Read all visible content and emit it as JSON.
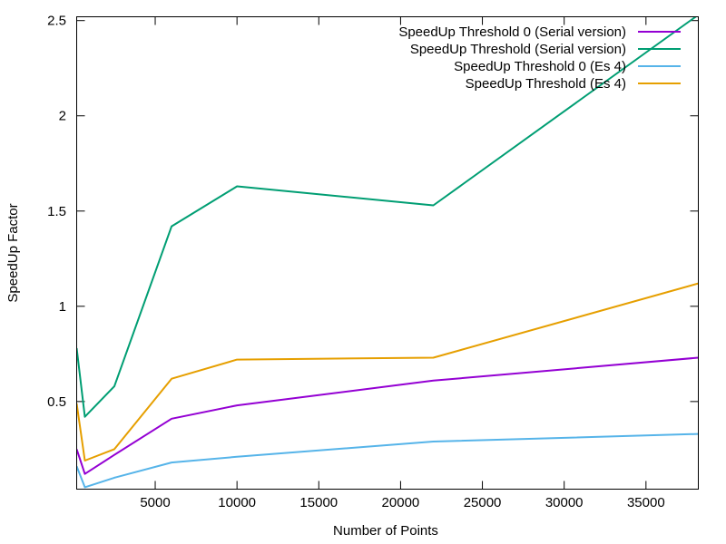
{
  "chart_data": {
    "type": "line",
    "title": "",
    "xlabel": "Number of Points",
    "ylabel": "SpeedUp Factor",
    "xlim": [
      200,
      38200
    ],
    "ylim": [
      0.04,
      2.52
    ],
    "xticks": [
      5000,
      10000,
      15000,
      20000,
      25000,
      30000,
      35000
    ],
    "yticks": [
      0.5,
      1,
      1.5,
      2,
      2.5
    ],
    "xtick_labels": [
      "5000",
      "10000",
      "15000",
      "20000",
      "25000",
      "30000",
      "35000"
    ],
    "ytick_labels": [
      "0.5",
      "1",
      "1.5",
      "2",
      "2.5"
    ],
    "grid": false,
    "legend_position": "top-right",
    "series": [
      {
        "name": "SpeedUp Threshold 0 (Serial version)",
        "color": "#9400d3",
        "x": [
          200,
          700,
          2500,
          6000,
          10000,
          22000,
          38200
        ],
        "y": [
          0.25,
          0.12,
          0.22,
          0.41,
          0.48,
          0.61,
          0.73
        ]
      },
      {
        "name": "SpeedUp Threshold (Serial version)",
        "color": "#009e73",
        "x": [
          200,
          700,
          2500,
          6000,
          10000,
          22000,
          38200
        ],
        "y": [
          0.78,
          0.42,
          0.58,
          1.42,
          1.63,
          1.53,
          2.53
        ]
      },
      {
        "name": "SpeedUp Threshold 0 (Es 4)",
        "color": "#56b4e9",
        "x": [
          200,
          700,
          2500,
          6000,
          10000,
          22000,
          38200
        ],
        "y": [
          0.16,
          0.05,
          0.1,
          0.18,
          0.21,
          0.29,
          0.33
        ]
      },
      {
        "name": "SpeedUp Threshold (Es 4)",
        "color": "#e69f00",
        "x": [
          200,
          700,
          2500,
          6000,
          10000,
          22000,
          38200
        ],
        "y": [
          0.49,
          0.19,
          0.25,
          0.62,
          0.72,
          0.73,
          1.12
        ]
      }
    ]
  }
}
